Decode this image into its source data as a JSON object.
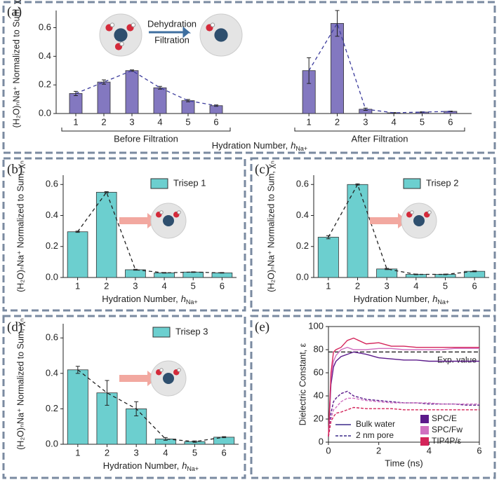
{
  "chart_data": [
    {
      "type": "grouped_bar",
      "panel_label": "(a)",
      "ylabel": "(H₂O)ₙNa⁺ Normalized to Sum, χₙ",
      "xlabel": {
        "text": "Hydration Number,",
        "var": "h",
        "sub": "Na+"
      },
      "color": "#8378c0",
      "ylim": [
        0,
        0.72
      ],
      "yticks": [
        {
          "value": 0,
          "label": "0.0"
        },
        0.2,
        0.4,
        0.6
      ],
      "annotations": [
        "Dehydration",
        "Filtration"
      ],
      "groups": [
        {
          "name": "Before Filtration",
          "categories": [
            "1",
            "2",
            "3",
            "4",
            "5",
            "6"
          ],
          "values": [
            0.14,
            0.22,
            0.3,
            0.18,
            0.09,
            0.055
          ],
          "errors": [
            0.015,
            0.015,
            0.005,
            0.01,
            0.008,
            0.005
          ]
        },
        {
          "name": "After Filtration",
          "categories": [
            "1",
            "2",
            "3",
            "4",
            "5",
            "6"
          ],
          "values": [
            0.3,
            0.63,
            0.03,
            0.005,
            0.01,
            0.015
          ],
          "errors": [
            0.09,
            0.09,
            0.008,
            0.002,
            0.002,
            0.002
          ]
        }
      ]
    },
    {
      "type": "bar",
      "panel_label": "(b)",
      "legend": "Trisep 1",
      "ylabel": "(H₂O)ₙNa⁺ Normalized to Sum, χₙ",
      "xlabel": {
        "text": "Hydration Number,",
        "var": "h",
        "sub": "Na+"
      },
      "color": "#6ccfcf",
      "ylim": [
        0,
        0.66
      ],
      "yticks": [
        {
          "value": 0,
          "label": "0.0"
        },
        0.2,
        0.4,
        0.6
      ],
      "categories": [
        "1",
        "2",
        "3",
        "4",
        "5",
        "6"
      ],
      "values": [
        0.295,
        0.55,
        0.05,
        0.03,
        0.035,
        0.03
      ],
      "errors": [
        0.004,
        0.004,
        0.003,
        0.002,
        0.002,
        0.002
      ]
    },
    {
      "type": "bar",
      "panel_label": "(c)",
      "legend": "Trisep 2",
      "ylabel": "(H₂O)ₙNa⁺ Normalized to Sum, χₙ",
      "xlabel": {
        "text": "Hydration Number,",
        "var": "h",
        "sub": "Na+"
      },
      "color": "#6ccfcf",
      "ylim": [
        0,
        0.66
      ],
      "yticks": [
        {
          "value": 0,
          "label": "0.0"
        },
        0.2,
        0.4,
        0.6
      ],
      "categories": [
        "1",
        "2",
        "3",
        "4",
        "5",
        "6"
      ],
      "values": [
        0.26,
        0.6,
        0.055,
        0.02,
        0.02,
        0.04
      ],
      "errors": [
        0.01,
        0.004,
        0.004,
        0.002,
        0.002,
        0.003
      ]
    },
    {
      "type": "bar",
      "panel_label": "(d)",
      "legend": "Trisep 3",
      "ylabel": "(H₂O)ₙNa⁺ Normalized to Sum, χₙ",
      "xlabel": {
        "text": "Hydration Number,",
        "var": "h",
        "sub": "Na+"
      },
      "color": "#6ccfcf",
      "ylim": [
        0,
        0.68
      ],
      "yticks": [
        {
          "value": 0,
          "label": "0.0"
        },
        0.2,
        0.4,
        0.6
      ],
      "categories": [
        "1",
        "2",
        "3",
        "4",
        "5",
        "6"
      ],
      "values": [
        0.42,
        0.29,
        0.2,
        0.03,
        0.015,
        0.04
      ],
      "errors": [
        0.02,
        0.07,
        0.04,
        0.008,
        0.004,
        0.003
      ]
    },
    {
      "type": "line",
      "panel_label": "(e)",
      "ylabel": "Dielectric Constant, ε",
      "xlabel": "Time (ns)",
      "xlim": [
        0,
        6
      ],
      "xticks": [
        0,
        2,
        4,
        6
      ],
      "ylim": [
        0,
        100
      ],
      "yticks": [
        0,
        20,
        40,
        60,
        80,
        100
      ],
      "reference": {
        "value": 78,
        "label": "Exp. value"
      },
      "line_styles": {
        "bulk": "Bulk water",
        "pore": "2 nm pore"
      },
      "x": [
        0,
        0.1,
        0.2,
        0.3,
        0.5,
        0.75,
        1,
        1.5,
        2,
        2.5,
        3,
        3.5,
        4,
        4.5,
        5,
        5.5,
        6
      ],
      "series": [
        {
          "name": "SPC/E",
          "color": "#5b1a8a",
          "bulk": [
            5,
            50,
            65,
            70,
            74,
            76,
            78,
            76,
            73,
            72,
            71,
            71,
            70,
            70,
            70,
            70,
            70
          ],
          "pore": [
            5,
            25,
            35,
            38,
            42,
            44,
            40,
            37,
            36,
            35,
            34,
            34,
            33,
            33,
            33,
            32,
            32
          ]
        },
        {
          "name": "SPC/Fw",
          "color": "#d070c0",
          "bulk": [
            5,
            55,
            70,
            75,
            80,
            82,
            80,
            80,
            81,
            81,
            80,
            80,
            80,
            80,
            81,
            81,
            81
          ],
          "pore": [
            5,
            20,
            28,
            30,
            35,
            38,
            38,
            36,
            35,
            34,
            34,
            34,
            34,
            33,
            33,
            33,
            33
          ]
        },
        {
          "name": "TIP4P/ε",
          "color": "#d4245a",
          "bulk": [
            5,
            60,
            78,
            80,
            82,
            88,
            90,
            85,
            86,
            83,
            83,
            82,
            82,
            82,
            82,
            82,
            82
          ],
          "pore": [
            5,
            18,
            22,
            25,
            26,
            28,
            30,
            29,
            29,
            29,
            28,
            28,
            28,
            28,
            28,
            28,
            28
          ]
        }
      ]
    }
  ]
}
